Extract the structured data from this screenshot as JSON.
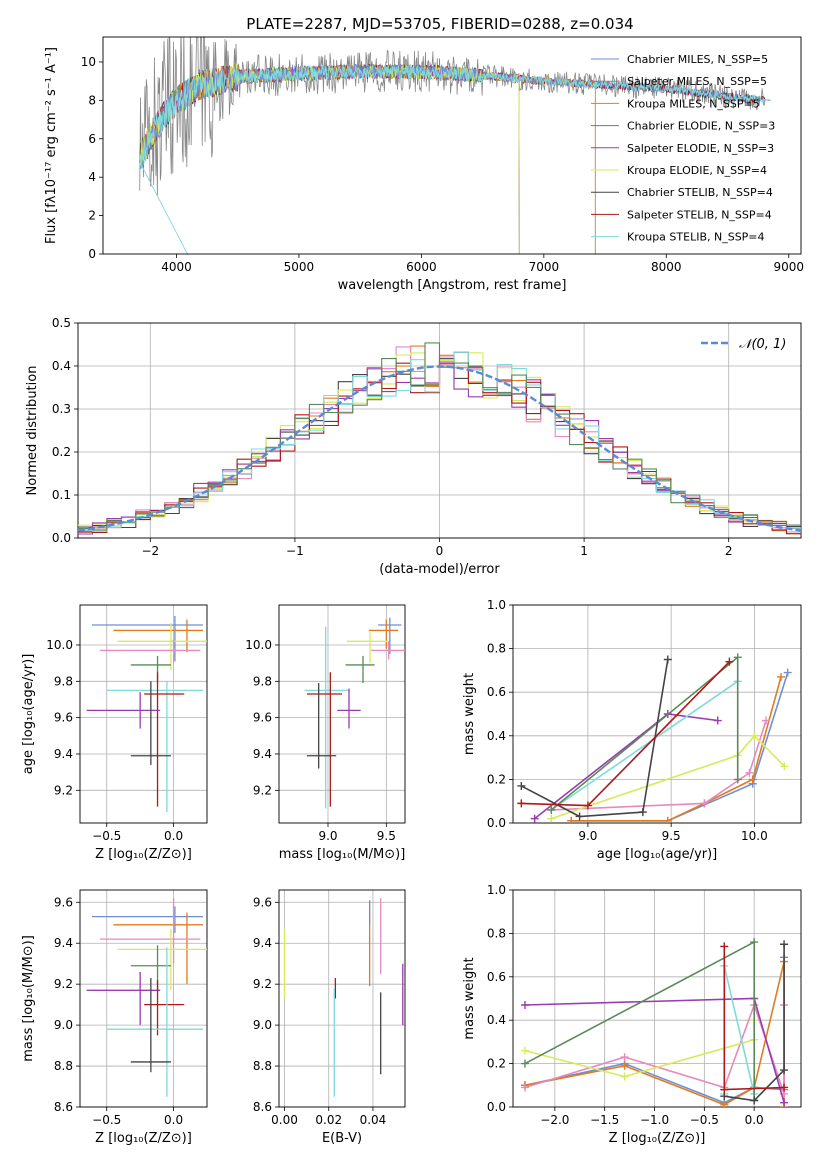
{
  "figure": {
    "title": "PLATE=2287, MJD=53705, FIBERID=0288, z=0.034"
  },
  "chart_data": [
    {
      "id": "spectrum",
      "type": "line",
      "xlabel": "wavelength [Angstrom, rest frame]",
      "ylabel": "Flux [fλ10⁻¹⁷ erg cm⁻² s⁻¹ A⁻¹]",
      "xlim": [
        3400,
        9100
      ],
      "ylim": [
        0,
        11.3
      ],
      "xticks": [
        4000,
        5000,
        6000,
        7000,
        8000,
        9000
      ],
      "yticks": [
        0,
        2,
        4,
        6,
        8,
        10
      ],
      "grid": false,
      "legend": "upper-right",
      "series": [
        {
          "name": "Chabrier MILES, N_SSP=5",
          "color": "#6d8fd6",
          "range": [
            3700,
            8850
          ]
        },
        {
          "name": "Salpeter MILES, N_SSP=5",
          "color": "#888888",
          "range": [
            3700,
            8850
          ]
        },
        {
          "name": "Kroupa MILES, N_SSP=5",
          "color": "#e07c20",
          "range": [
            3700,
            7420
          ]
        },
        {
          "name": "Chabrier ELODIE, N_SSP=3",
          "color": "#5a8a5a",
          "range": [
            3700,
            6800
          ]
        },
        {
          "name": "Salpeter ELODIE, N_SSP=3",
          "color": "#9a3bb0",
          "range": [
            3700,
            6800
          ]
        },
        {
          "name": "Kroupa ELODIE, N_SSP=4",
          "color": "#d8ea5a",
          "range": [
            3700,
            6800
          ]
        },
        {
          "name": "Chabrier STELIB, N_SSP=4",
          "color": "#444444",
          "range": [
            3700,
            8850
          ]
        },
        {
          "name": "Salpeter STELIB, N_SSP=4",
          "color": "#b01818",
          "range": [
            3700,
            8850
          ]
        },
        {
          "name": "Kroupa STELIB, N_SSP=4",
          "color": "#7fdada",
          "range": [
            3700,
            8850
          ]
        }
      ],
      "continuum": {
        "x": [
          3700,
          3800,
          3900,
          4000,
          4200,
          4500,
          5000,
          5500,
          6000,
          6500,
          7000,
          7500,
          8000,
          8500,
          8850
        ],
        "y": [
          5.0,
          6.2,
          7.2,
          8.0,
          8.8,
          9.2,
          9.4,
          9.5,
          9.5,
          9.3,
          9.0,
          8.8,
          8.6,
          8.2,
          8.0
        ]
      }
    },
    {
      "id": "residuals",
      "type": "histogram",
      "xlabel": "(data-model)/error",
      "ylabel": "Normed distribution",
      "xlim": [
        -2.5,
        2.5
      ],
      "ylim": [
        0,
        0.5
      ],
      "xticks": [
        -2,
        -1,
        0,
        1,
        2
      ],
      "yticks": [
        0.0,
        0.1,
        0.2,
        0.3,
        0.4,
        0.5
      ],
      "grid": true,
      "legend": "upper-right",
      "legend_label": "𝒩(0, 1)",
      "gaussian": {
        "mean": 0,
        "sigma": 1,
        "color": "#5b8ad6"
      },
      "bin_width": 0.1,
      "bin_start": -2.5,
      "hist_colors": [
        "#e07c20",
        "#e58ac0",
        "#444444",
        "#d8ea5a",
        "#9a3bb0",
        "#b01818",
        "#7fdada",
        "#5a8a5a"
      ]
    },
    {
      "id": "age-vs-Z",
      "type": "errorbar",
      "xlabel": "Z [log₁₀(Z/Z⊙)]",
      "ylabel": "age  [log₁₀(age/yr)]",
      "xlim": [
        -0.7,
        0.25
      ],
      "ylim": [
        9.02,
        10.22
      ],
      "xticks": [
        -0.5,
        0.0
      ],
      "yticks": [
        9.2,
        9.4,
        9.6,
        9.8,
        10.0
      ],
      "grid": true,
      "points": [
        {
          "x": 0.01,
          "y": 10.11,
          "xerr": [
            0.62,
            0.21
          ],
          "yerr": [
            0.2,
            0.05
          ],
          "color": "#6d8fd6"
        },
        {
          "x": 0.1,
          "y": 10.08,
          "xerr": [
            0.55,
            0.12
          ],
          "yerr": [
            0.12,
            0.06
          ],
          "color": "#e07c20"
        },
        {
          "x": -0.02,
          "y": 10.02,
          "xerr": [
            0.4,
            0.3
          ],
          "yerr": [
            0.16,
            0.1
          ],
          "color": "#d8ea5a"
        },
        {
          "x": 0.0,
          "y": 9.97,
          "xerr": [
            0.55,
            0.2
          ],
          "yerr": [
            0.07,
            0.06
          ],
          "color": "#e58ac0"
        },
        {
          "x": -0.12,
          "y": 9.89,
          "xerr": [
            0.2,
            0.1
          ],
          "yerr": [
            0.1,
            0.05
          ],
          "color": "#5a8a5a"
        },
        {
          "x": -0.05,
          "y": 9.75,
          "xerr": [
            0.45,
            0.27
          ],
          "yerr": [
            0.67,
            0.05
          ],
          "color": "#7fdada"
        },
        {
          "x": -0.12,
          "y": 9.73,
          "xerr": [
            0.1,
            0.2
          ],
          "yerr": [
            0.62,
            0.12
          ],
          "color": "#b01818"
        },
        {
          "x": -0.25,
          "y": 9.64,
          "xerr": [
            0.4,
            0.15
          ],
          "yerr": [
            0.1,
            0.1
          ],
          "color": "#9a3bb0"
        },
        {
          "x": -0.17,
          "y": 9.39,
          "xerr": [
            0.15,
            0.15
          ],
          "yerr": [
            0.05,
            0.41
          ],
          "color": "#444444"
        }
      ]
    },
    {
      "id": "age-vs-mass",
      "type": "errorbar",
      "xlabel": "mass [log₁₀(M/M⊙)]",
      "ylabel": "",
      "xlim": [
        8.58,
        9.66
      ],
      "ylim": [
        9.02,
        10.22
      ],
      "xticks": [
        9.0,
        9.5
      ],
      "yticks": [
        9.2,
        9.4,
        9.6,
        9.8,
        10.0
      ],
      "grid": true,
      "points": [
        {
          "x": 9.53,
          "y": 10.11,
          "xerr": [
            0.1,
            0.1
          ],
          "yerr": [
            0.16,
            0.04
          ],
          "color": "#6d8fd6"
        },
        {
          "x": 9.5,
          "y": 10.08,
          "xerr": [
            0.15,
            0.1
          ],
          "yerr": [
            0.1,
            0.06
          ],
          "color": "#e07c20"
        },
        {
          "x": 9.36,
          "y": 10.02,
          "xerr": [
            0.2,
            0.15
          ],
          "yerr": [
            0.12,
            0.05
          ],
          "color": "#d8ea5a"
        },
        {
          "x": 9.52,
          "y": 9.97,
          "xerr": [
            0.15,
            0.15
          ],
          "yerr": [
            0.05,
            0.05
          ],
          "color": "#e58ac0"
        },
        {
          "x": 9.3,
          "y": 9.89,
          "xerr": [
            0.15,
            0.1
          ],
          "yerr": [
            0.1,
            0.05
          ],
          "color": "#5a8a5a"
        },
        {
          "x": 8.98,
          "y": 9.75,
          "xerr": [
            0.18,
            0.2
          ],
          "yerr": [
            0.65,
            0.35
          ],
          "color": "#7fdada"
        },
        {
          "x": 9.02,
          "y": 9.73,
          "xerr": [
            0.2,
            0.1
          ],
          "yerr": [
            0.62,
            0.12
          ],
          "color": "#b01818"
        },
        {
          "x": 9.18,
          "y": 9.64,
          "xerr": [
            0.1,
            0.1
          ],
          "yerr": [
            0.1,
            0.12
          ],
          "color": "#9a3bb0"
        },
        {
          "x": 8.92,
          "y": 9.39,
          "xerr": [
            0.1,
            0.15
          ],
          "yerr": [
            0.07,
            0.4
          ],
          "color": "#444444"
        }
      ]
    },
    {
      "id": "weight-vs-age",
      "type": "line",
      "xlabel": "age  [log₁₀(age/yr)]",
      "ylabel": "mass weight",
      "xlim": [
        8.55,
        10.28
      ],
      "ylim": [
        0,
        1
      ],
      "xticks": [
        9.0,
        9.5,
        10.0
      ],
      "yticks": [
        0.0,
        0.2,
        0.4,
        0.6,
        0.8,
        1.0
      ],
      "grid": true,
      "series": [
        {
          "color": "#6d8fd6",
          "x": [
            8.9,
            9.48,
            9.99,
            10.2
          ],
          "y": [
            0.01,
            0.01,
            0.18,
            0.69
          ]
        },
        {
          "color": "#e07c20",
          "x": [
            8.9,
            9.48,
            9.7,
            9.99,
            10.16
          ],
          "y": [
            0.01,
            0.01,
            0.09,
            0.2,
            0.67
          ]
        },
        {
          "color": "#e58ac0",
          "x": [
            8.78,
            9.7,
            9.97,
            10.07
          ],
          "y": [
            0.06,
            0.09,
            0.23,
            0.47
          ]
        },
        {
          "color": "#9a3bb0",
          "x": [
            8.68,
            9.48,
            9.78
          ],
          "y": [
            0.02,
            0.5,
            0.47
          ]
        },
        {
          "color": "#d8ea5a",
          "x": [
            8.78,
            9.9,
            10.0,
            10.18
          ],
          "y": [
            0.02,
            0.31,
            0.4,
            0.26
          ]
        },
        {
          "color": "#7fdada",
          "x": [
            8.78,
            9.9
          ],
          "y": [
            0.06,
            0.65
          ]
        },
        {
          "color": "#5a8a5a",
          "x": [
            8.78,
            9.9,
            9.9
          ],
          "y": [
            0.06,
            0.76,
            0.2
          ]
        },
        {
          "color": "#444444",
          "x": [
            8.6,
            8.95,
            9.33,
            9.48
          ],
          "y": [
            0.17,
            0.03,
            0.05,
            0.75
          ]
        },
        {
          "color": "#b01818",
          "x": [
            8.6,
            9.0,
            9.85
          ],
          "y": [
            0.09,
            0.08,
            0.74
          ]
        }
      ]
    },
    {
      "id": "mass-vs-Z",
      "type": "errorbar",
      "xlabel": "Z [log₁₀(Z/Z⊙)]",
      "ylabel": "mass [log₁₀(M/M⊙)]",
      "xlim": [
        -0.7,
        0.25
      ],
      "ylim": [
        8.6,
        9.66
      ],
      "xticks": [
        -0.5,
        0.0
      ],
      "yticks": [
        8.6,
        8.8,
        9.0,
        9.2,
        9.4,
        9.6
      ],
      "grid": true,
      "points": [
        {
          "x": 0.01,
          "y": 9.53,
          "xerr": [
            0.62,
            0.21
          ],
          "yerr": [
            0.08,
            0.05
          ],
          "color": "#6d8fd6"
        },
        {
          "x": 0.1,
          "y": 9.49,
          "xerr": [
            0.55,
            0.12
          ],
          "yerr": [
            0.29,
            0.06
          ],
          "color": "#e07c20"
        },
        {
          "x": 0.0,
          "y": 9.42,
          "xerr": [
            0.55,
            0.2
          ],
          "yerr": [
            0.12,
            0.2
          ],
          "color": "#e58ac0"
        },
        {
          "x": -0.02,
          "y": 9.37,
          "xerr": [
            0.4,
            0.3
          ],
          "yerr": [
            0.2,
            0.1
          ],
          "color": "#d8ea5a"
        },
        {
          "x": -0.12,
          "y": 9.29,
          "xerr": [
            0.2,
            0.1
          ],
          "yerr": [
            0.13,
            0.1
          ],
          "color": "#5a8a5a"
        },
        {
          "x": -0.25,
          "y": 9.17,
          "xerr": [
            0.4,
            0.15
          ],
          "yerr": [
            0.17,
            0.09
          ],
          "color": "#9a3bb0"
        },
        {
          "x": -0.12,
          "y": 9.1,
          "xerr": [
            0.1,
            0.2
          ],
          "yerr": [
            0.15,
            0.12
          ],
          "color": "#b01818"
        },
        {
          "x": -0.05,
          "y": 8.98,
          "xerr": [
            0.45,
            0.27
          ],
          "yerr": [
            0.33,
            0.4
          ],
          "color": "#7fdada"
        },
        {
          "x": -0.17,
          "y": 8.82,
          "xerr": [
            0.15,
            0.15
          ],
          "yerr": [
            0.05,
            0.41
          ],
          "color": "#444444"
        }
      ]
    },
    {
      "id": "mass-vs-EBV",
      "type": "errorbar",
      "xlabel": "E(B-V)",
      "ylabel": "",
      "xlim": [
        -0.0025,
        0.0545
      ],
      "ylim": [
        8.6,
        9.66
      ],
      "xticks": [
        0.0,
        0.02,
        0.04
      ],
      "yticks": [
        8.6,
        8.8,
        9.0,
        9.2,
        9.4,
        9.6
      ],
      "grid": true,
      "points": [
        {
          "x": 0.0,
          "y": 9.3,
          "xerr": [
            0,
            0
          ],
          "yerr": [
            0.17,
            0.17
          ],
          "color": "#d8ea5a"
        },
        {
          "x": 0.023,
          "y": 9.18,
          "xerr": [
            0,
            0
          ],
          "yerr": [
            0.05,
            0.05
          ],
          "color": "#b01818"
        },
        {
          "x": 0.0225,
          "y": 8.98,
          "xerr": [
            0,
            0
          ],
          "yerr": [
            0.33,
            0.2
          ],
          "color": "#7fdada"
        },
        {
          "x": 0.0385,
          "y": 9.4,
          "xerr": [
            0,
            0
          ],
          "yerr": [
            0.21,
            0.2
          ],
          "color": "#e07c20"
        },
        {
          "x": 0.0385,
          "y": 9.55,
          "xerr": [
            0,
            0
          ],
          "yerr": [
            0.06,
            0.06
          ],
          "color": "#6d8fd6"
        },
        {
          "x": 0.0435,
          "y": 9.43,
          "xerr": [
            0,
            0
          ],
          "yerr": [
            0.18,
            0.19
          ],
          "color": "#e58ac0"
        },
        {
          "x": 0.0435,
          "y": 8.96,
          "xerr": [
            0,
            0
          ],
          "yerr": [
            0.2,
            0.2
          ],
          "color": "#444444"
        },
        {
          "x": 0.0535,
          "y": 9.15,
          "xerr": [
            0,
            0
          ],
          "yerr": [
            0.15,
            0.15
          ],
          "color": "#9a3bb0"
        }
      ]
    },
    {
      "id": "weight-vs-Z",
      "type": "line",
      "xlabel": "Z [log₁₀(Z/Z⊙)]",
      "ylabel": "mass weight",
      "xlim": [
        -2.42,
        0.47
      ],
      "ylim": [
        0,
        1
      ],
      "xticks": [
        -2.0,
        -1.5,
        -1.0,
        -0.5,
        0.0
      ],
      "yticks": [
        0.0,
        0.2,
        0.4,
        0.6,
        0.8,
        1.0
      ],
      "grid": true,
      "series": [
        {
          "color": "#6d8fd6",
          "x": [
            -2.3,
            -1.3,
            -0.3,
            0.0,
            0.3,
            0.3
          ],
          "y": [
            0.1,
            0.2,
            0.02,
            0.09,
            0.08,
            0.69
          ]
        },
        {
          "color": "#e07c20",
          "x": [
            -2.3,
            -1.3,
            -0.3,
            0.0,
            0.3,
            0.3
          ],
          "y": [
            0.1,
            0.19,
            0.01,
            0.09,
            0.67,
            0.0
          ]
        },
        {
          "color": "#e58ac0",
          "x": [
            -2.3,
            -1.3,
            -0.3,
            0.0,
            0.3,
            0.3
          ],
          "y": [
            0.09,
            0.23,
            0.09,
            0.47,
            0.06,
            0.47
          ]
        },
        {
          "color": "#9a3bb0",
          "x": [
            -2.3,
            0.0,
            0.3
          ],
          "y": [
            0.47,
            0.5,
            0.02
          ]
        },
        {
          "color": "#d8ea5a",
          "x": [
            -2.3,
            -1.3,
            0.0,
            0.0
          ],
          "y": [
            0.26,
            0.14,
            0.31,
            0.4
          ]
        },
        {
          "color": "#7fdada",
          "x": [
            -0.3,
            -0.3,
            0.0
          ],
          "y": [
            0.06,
            0.65,
            0.06
          ]
        },
        {
          "color": "#5a8a5a",
          "x": [
            -2.3,
            0.0,
            0.0
          ],
          "y": [
            0.2,
            0.76,
            0.03
          ]
        },
        {
          "color": "#444444",
          "x": [
            -0.3,
            0.0,
            0.3,
            0.3
          ],
          "y": [
            0.05,
            0.03,
            0.17,
            0.75
          ]
        },
        {
          "color": "#b01818",
          "x": [
            -0.3,
            -0.3,
            0.3
          ],
          "y": [
            0.74,
            0.08,
            0.09
          ]
        }
      ]
    }
  ]
}
